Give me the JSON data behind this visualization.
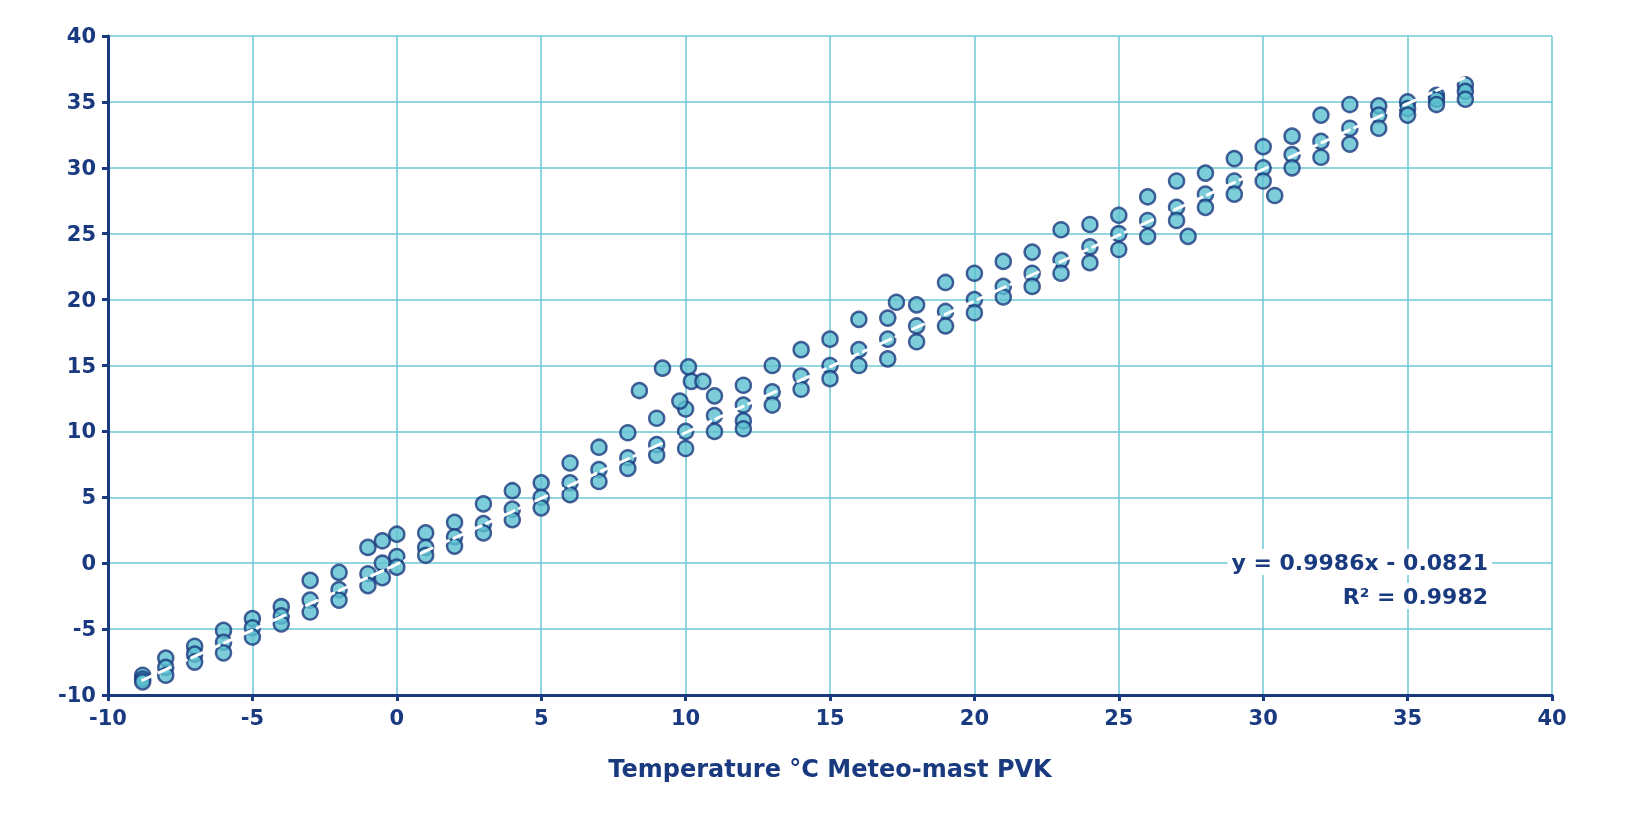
{
  "chart_data": {
    "type": "scatter",
    "xlabel": "Temperature °C Meteo-mast PVK",
    "xlim": [
      -10,
      40
    ],
    "xticks": [
      -10,
      -5,
      0,
      5,
      10,
      15,
      20,
      25,
      30,
      35,
      40
    ],
    "ylim": [
      -10,
      40
    ],
    "yticks": [
      -10,
      -5,
      0,
      5,
      10,
      15,
      20,
      25,
      30,
      35,
      40
    ],
    "grid": true,
    "marker": "circle",
    "annotations": [
      "y = 0.9986x - 0.0821",
      "R² = 0.9982"
    ],
    "series": [
      {
        "color": "#5bc0d0",
        "x": [
          -8.8,
          -8.8,
          -8.8,
          -8,
          -8,
          -8,
          -7,
          -7,
          -7,
          -6,
          -6,
          -6,
          -5,
          -5,
          -5,
          -4,
          -4,
          -4,
          -3,
          -3,
          -3,
          -2,
          -2,
          -2,
          -1,
          -1,
          -1,
          -0.5,
          -0.5,
          -0.5,
          0,
          0,
          0,
          1,
          1,
          1,
          2,
          2,
          2,
          3,
          3,
          3,
          4,
          4,
          4,
          5,
          5,
          5,
          6,
          6,
          6,
          7,
          7,
          7,
          8,
          8,
          8,
          9,
          9,
          9,
          10,
          10,
          10,
          11,
          11,
          11,
          12,
          12,
          12,
          13,
          13,
          13,
          14,
          14,
          14,
          15,
          15,
          15,
          16,
          16,
          16,
          17,
          17,
          17,
          18,
          18,
          18,
          19,
          19,
          19,
          20,
          20,
          20,
          21,
          21,
          21,
          22,
          22,
          22,
          23,
          23,
          23,
          24,
          24,
          24,
          25,
          25,
          25,
          26,
          26,
          26,
          27,
          27,
          27,
          28,
          28,
          28,
          29,
          29,
          29,
          30,
          30,
          30,
          31,
          31,
          31,
          32,
          32,
          32,
          33,
          33,
          33,
          34,
          34,
          34,
          35,
          35,
          35,
          36,
          36,
          36,
          37,
          37,
          37,
          8.4,
          9.2,
          10.1,
          10.2,
          10.6,
          9.8,
          30.4,
          27.4,
          17.3,
          12
        ],
        "values": [
          -8.5,
          -8.8,
          -9.0,
          -7.2,
          -7.9,
          -8.5,
          -6.3,
          -6.9,
          -7.5,
          -5.1,
          -6.0,
          -6.8,
          -4.2,
          -4.9,
          -5.6,
          -3.3,
          -4.0,
          -4.6,
          -1.3,
          -2.8,
          -3.7,
          -0.7,
          -2.0,
          -2.8,
          1.2,
          -0.8,
          -1.7,
          1.7,
          0.0,
          -1.1,
          2.2,
          0.5,
          -0.3,
          2.3,
          1.2,
          0.6,
          3.1,
          2.0,
          1.3,
          4.5,
          3.0,
          2.3,
          5.5,
          4.1,
          3.3,
          6.1,
          5.0,
          4.2,
          7.6,
          6.1,
          5.2,
          8.8,
          7.1,
          6.2,
          9.9,
          8.0,
          7.2,
          11.0,
          9.0,
          8.2,
          11.7,
          10.0,
          8.7,
          12.7,
          11.2,
          10.0,
          13.5,
          12.0,
          10.8,
          15.0,
          13.0,
          12.0,
          16.2,
          14.2,
          13.2,
          17.0,
          15.0,
          14.0,
          18.5,
          16.2,
          15.0,
          18.6,
          17.0,
          15.5,
          19.6,
          18.0,
          16.8,
          21.3,
          19.1,
          18.0,
          22.0,
          20.0,
          19.0,
          22.9,
          21.0,
          20.2,
          23.6,
          22.0,
          21.0,
          25.3,
          23.0,
          22.0,
          25.7,
          24.0,
          22.8,
          26.4,
          25.0,
          23.8,
          27.8,
          26.0,
          24.8,
          29.0,
          27.0,
          26.0,
          29.6,
          28.0,
          27.0,
          30.7,
          29.0,
          28.0,
          31.6,
          30.0,
          29.0,
          32.4,
          31.0,
          30.0,
          34.0,
          32.0,
          30.8,
          34.8,
          33.0,
          31.8,
          34.7,
          34.0,
          33.0,
          35.0,
          34.5,
          34.0,
          35.5,
          35.2,
          34.8,
          36.3,
          35.8,
          35.2,
          13.1,
          14.8,
          14.9,
          13.8,
          13.8,
          12.3,
          27.9,
          24.8,
          19.8,
          10.2
        ]
      },
      {
        "type": "line",
        "color": "#ffffff",
        "line_style": "dashed",
        "marker": "none",
        "x": [
          -8.8,
          37
        ],
        "values": [
          -8.87,
          36.87
        ]
      }
    ]
  }
}
